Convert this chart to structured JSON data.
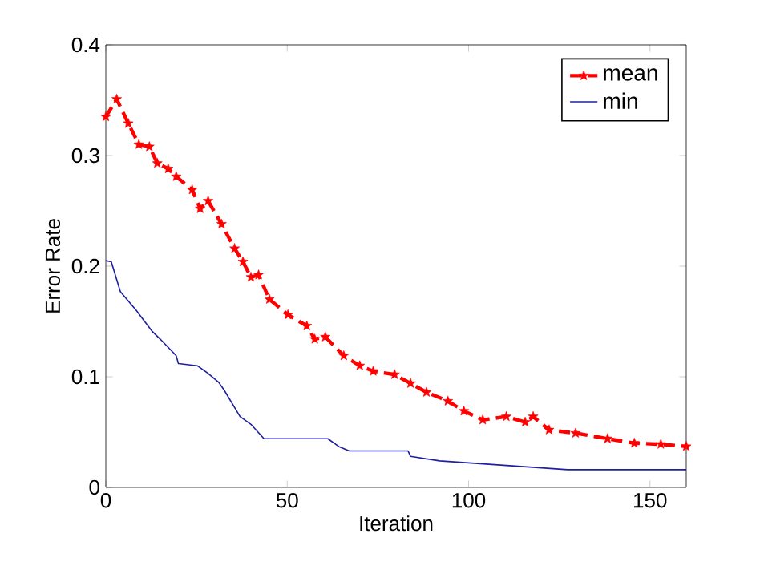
{
  "chart_data": {
    "type": "line",
    "xlabel": "Iteration",
    "ylabel": "Error Rate",
    "xlim": [
      0,
      160
    ],
    "ylim": [
      0,
      0.4
    ],
    "xticks": [
      0,
      50,
      100,
      150
    ],
    "yticks": [
      0,
      0.1,
      0.2,
      0.3,
      0.4
    ],
    "legend": "top right",
    "series": [
      {
        "name": "mean",
        "color": "#ff0000",
        "marker": "star",
        "line_style": "dashed",
        "x": [
          0,
          3,
          6.2,
          9.1,
          12,
          14.2,
          17.2,
          19.4,
          23.8,
          26,
          28.2,
          31.9,
          35.5,
          37.8,
          40,
          42.1,
          45.1,
          50.2,
          55.4,
          57.6,
          60.5,
          65.6,
          70,
          73.7,
          79.6,
          84,
          88.4,
          94.3,
          98.7,
          103.9,
          110.4,
          115.6,
          117.8,
          122.2,
          129.5,
          138.3,
          145.7,
          153,
          160
        ],
        "values": [
          0.335,
          0.351,
          0.329,
          0.31,
          0.308,
          0.293,
          0.288,
          0.281,
          0.269,
          0.252,
          0.259,
          0.238,
          0.216,
          0.204,
          0.19,
          0.192,
          0.17,
          0.156,
          0.146,
          0.134,
          0.136,
          0.119,
          0.11,
          0.105,
          0.102,
          0.094,
          0.086,
          0.078,
          0.069,
          0.061,
          0.064,
          0.059,
          0.064,
          0.052,
          0.049,
          0.044,
          0.04,
          0.039,
          0.037
        ]
      },
      {
        "name": "min",
        "color": "#1f1fa0",
        "marker": "none",
        "line_style": "solid",
        "x": [
          0,
          1.5,
          4,
          8.4,
          12.8,
          15,
          19.4,
          20,
          25.2,
          28.2,
          31.1,
          32.6,
          37,
          40,
          43.6,
          61.2,
          64.2,
          67.1,
          83.3,
          84,
          92,
          127.3,
          160
        ],
        "values": [
          0.205,
          0.204,
          0.177,
          0.16,
          0.141,
          0.134,
          0.119,
          0.112,
          0.11,
          0.103,
          0.095,
          0.088,
          0.064,
          0.057,
          0.044,
          0.044,
          0.037,
          0.033,
          0.033,
          0.028,
          0.024,
          0.016,
          0.016
        ]
      }
    ]
  }
}
